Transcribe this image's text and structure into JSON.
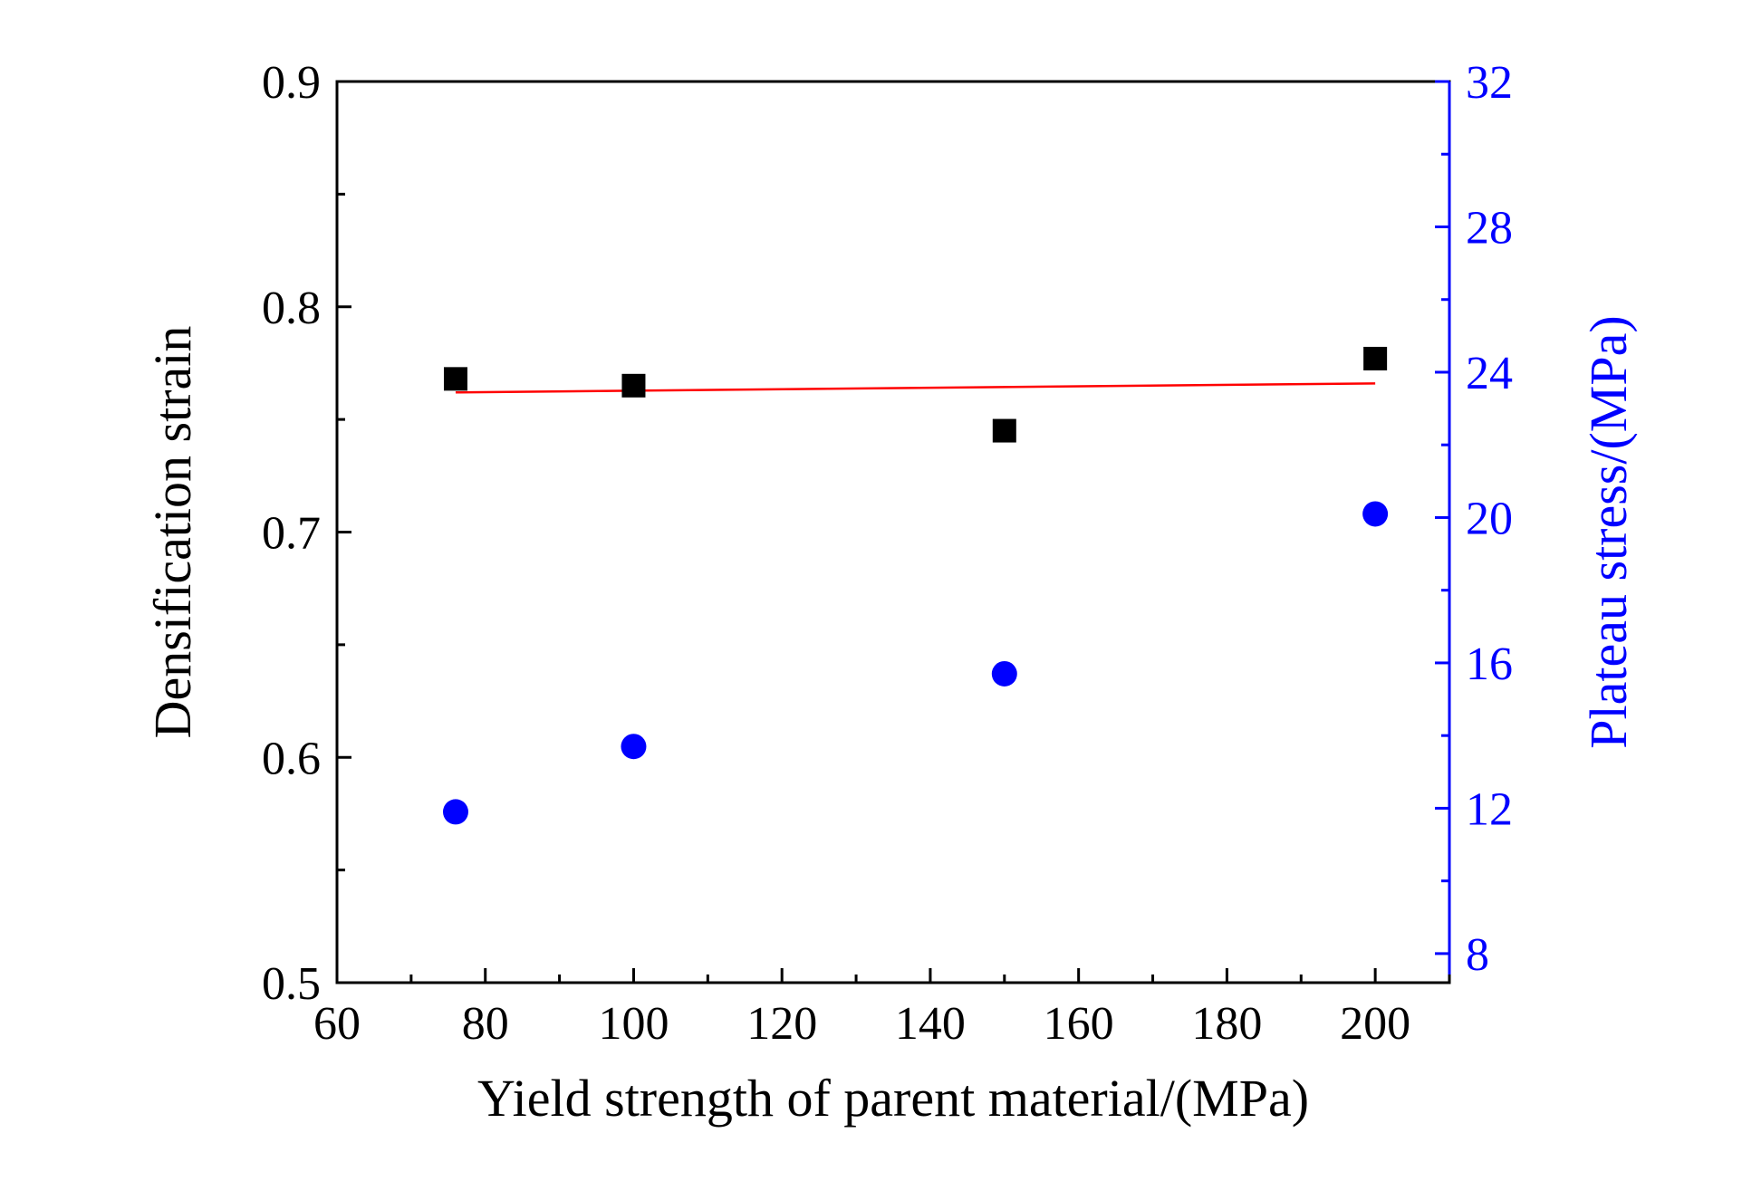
{
  "chart_data": {
    "type": "scatter",
    "title": "",
    "xlabel": "Yield strength of parent material/(MPa)",
    "ylabel": "Densification strain",
    "y2label": "Plateau stress/(MPa)",
    "xlim": [
      60,
      210
    ],
    "ylim": [
      0.5,
      0.9
    ],
    "y2lim": [
      7.2,
      32
    ],
    "x_ticks": [
      60,
      80,
      100,
      120,
      140,
      160,
      180,
      200
    ],
    "x_tick_labels": [
      "60",
      "80",
      "100",
      "120",
      "140",
      "160",
      "180",
      "200"
    ],
    "y_ticks": [
      0.5,
      0.6,
      0.7,
      0.8,
      0.9
    ],
    "y_tick_labels": [
      "0.5",
      "0.6",
      "0.7",
      "0.8",
      "0.9"
    ],
    "y2_ticks": [
      8,
      12,
      16,
      20,
      24,
      28,
      32
    ],
    "y2_tick_labels": [
      "8",
      "12",
      "16",
      "20",
      "24",
      "28",
      "32"
    ],
    "grid": false,
    "series": [
      {
        "name": "Densification strain",
        "axis": "left",
        "marker": "square",
        "color": "#000000",
        "x": [
          76,
          100,
          150,
          200
        ],
        "y": [
          0.768,
          0.765,
          0.745,
          0.777
        ]
      },
      {
        "name": "Plateau stress",
        "axis": "right",
        "marker": "circle",
        "color": "#0000ff",
        "x": [
          76,
          100,
          150,
          200
        ],
        "y": [
          11.9,
          13.7,
          15.7,
          20.1
        ]
      }
    ],
    "fit_line": {
      "name": "Linear fit",
      "axis": "left",
      "color": "#ff0000",
      "x": [
        76,
        200
      ],
      "y": [
        0.762,
        0.766
      ]
    }
  }
}
